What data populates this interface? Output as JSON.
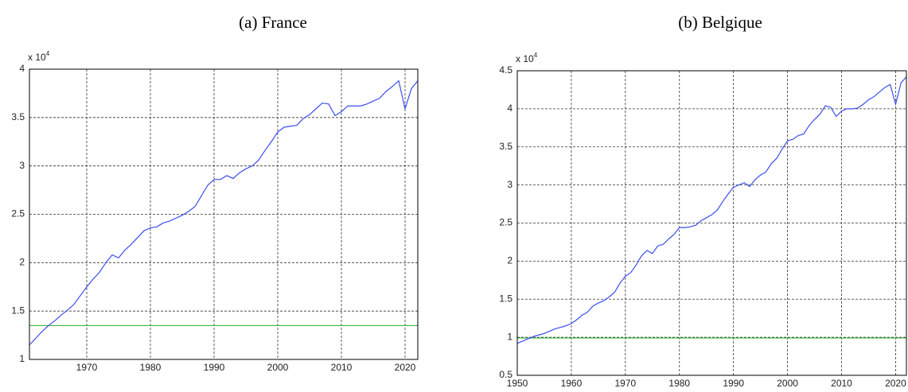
{
  "chart_data": [
    {
      "type": "line",
      "title": "(a) France",
      "y_multiplier": {
        "base": "x 10",
        "exponent": "4"
      },
      "x": [
        1961,
        1962,
        1963,
        1964,
        1965,
        1966,
        1967,
        1968,
        1969,
        1970,
        1971,
        1972,
        1973,
        1974,
        1975,
        1976,
        1977,
        1978,
        1979,
        1980,
        1981,
        1982,
        1983,
        1984,
        1985,
        1986,
        1987,
        1988,
        1989,
        1990,
        1991,
        1992,
        1993,
        1994,
        1995,
        1996,
        1997,
        1998,
        1999,
        2000,
        2001,
        2002,
        2003,
        2004,
        2005,
        2006,
        2007,
        2008,
        2009,
        2010,
        2011,
        2012,
        2013,
        2014,
        2015,
        2016,
        2017,
        2018,
        2019,
        2020,
        2021,
        2022
      ],
      "series": [
        {
          "color": "#3a4ff0",
          "values": [
            1.15,
            1.22,
            1.29,
            1.35,
            1.4,
            1.46,
            1.51,
            1.57,
            1.66,
            1.75,
            1.83,
            1.9,
            2.0,
            2.08,
            2.05,
            2.13,
            2.19,
            2.26,
            2.33,
            2.36,
            2.37,
            2.41,
            2.43,
            2.46,
            2.49,
            2.53,
            2.58,
            2.69,
            2.8,
            2.86,
            2.86,
            2.9,
            2.87,
            2.93,
            2.97,
            3.0,
            3.06,
            3.16,
            3.25,
            3.35,
            3.4,
            3.41,
            3.42,
            3.49,
            3.53,
            3.59,
            3.65,
            3.64,
            3.52,
            3.56,
            3.62,
            3.62,
            3.62,
            3.64,
            3.67,
            3.7,
            3.77,
            3.82,
            3.88,
            3.59,
            3.8,
            3.88
          ]
        }
      ],
      "hline": {
        "value": 1.35,
        "color": "#3cb83c"
      },
      "xlim": [
        1961,
        2022
      ],
      "xticks": [
        1970,
        1980,
        1990,
        2000,
        2010,
        2020
      ],
      "ylim": [
        1,
        4
      ],
      "yticks": [
        1,
        1.5,
        2,
        2.5,
        3,
        3.5,
        4
      ],
      "grid": true
    },
    {
      "type": "line",
      "title": "(b) Belgique",
      "y_multiplier": {
        "base": "x 10",
        "exponent": "4"
      },
      "x": [
        1950,
        1951,
        1952,
        1953,
        1954,
        1955,
        1956,
        1957,
        1958,
        1959,
        1960,
        1961,
        1962,
        1963,
        1964,
        1965,
        1966,
        1967,
        1968,
        1969,
        1970,
        1971,
        1972,
        1973,
        1974,
        1975,
        1976,
        1977,
        1978,
        1979,
        1980,
        1981,
        1982,
        1983,
        1984,
        1985,
        1986,
        1987,
        1988,
        1989,
        1990,
        1991,
        1992,
        1993,
        1994,
        1995,
        1996,
        1997,
        1998,
        1999,
        2000,
        2001,
        2002,
        2003,
        2004,
        2005,
        2006,
        2007,
        2008,
        2009,
        2010,
        2011,
        2012,
        2013,
        2014,
        2015,
        2016,
        2017,
        2018,
        2019,
        2020,
        2021,
        2022
      ],
      "series": [
        {
          "color": "#3a4ff0",
          "values": [
            0.92,
            0.95,
            0.98,
            1.01,
            1.03,
            1.05,
            1.08,
            1.11,
            1.13,
            1.15,
            1.18,
            1.23,
            1.29,
            1.33,
            1.41,
            1.45,
            1.48,
            1.53,
            1.59,
            1.71,
            1.8,
            1.85,
            1.95,
            2.07,
            2.14,
            2.1,
            2.2,
            2.22,
            2.29,
            2.35,
            2.44,
            2.44,
            2.45,
            2.47,
            2.53,
            2.57,
            2.61,
            2.67,
            2.78,
            2.88,
            2.97,
            3.0,
            3.03,
            2.98,
            3.07,
            3.13,
            3.17,
            3.28,
            3.35,
            3.47,
            3.58,
            3.6,
            3.65,
            3.67,
            3.78,
            3.86,
            3.93,
            4.04,
            4.02,
            3.9,
            3.97,
            4.0,
            4.0,
            4.01,
            4.06,
            4.12,
            4.16,
            4.22,
            4.28,
            4.32,
            4.06,
            4.34,
            4.42
          ]
        }
      ],
      "hline": {
        "value": 0.99,
        "color": "#3cb83c"
      },
      "xlim": [
        1950,
        2022
      ],
      "xticks": [
        1950,
        1960,
        1970,
        1980,
        1990,
        2000,
        2010,
        2020
      ],
      "ylim": [
        0.5,
        4.5
      ],
      "yticks": [
        0.5,
        1,
        1.5,
        2,
        2.5,
        3,
        3.5,
        4,
        4.5
      ],
      "grid": true
    }
  ]
}
